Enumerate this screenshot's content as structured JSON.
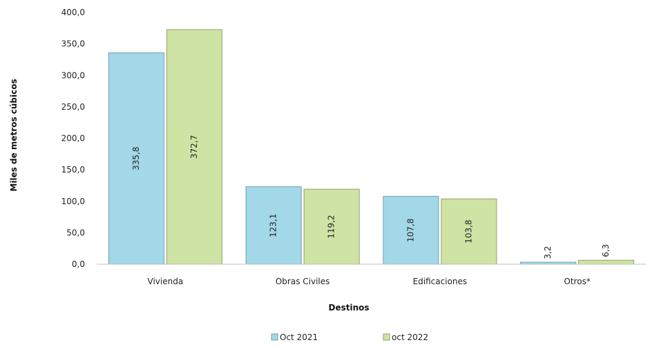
{
  "chart_data": {
    "type": "bar",
    "categories": [
      "Vivienda",
      "Obras Civiles",
      "Edificaciones",
      "Otros*"
    ],
    "series": [
      {
        "name": "Oct 2021",
        "values": [
          335.8,
          123.1,
          107.8,
          3.2
        ],
        "labels": [
          "335,8",
          "123,1",
          "107,8",
          "3,2"
        ],
        "color": "#a3d8e8",
        "stroke": "#6a9fb2"
      },
      {
        "name": "oct 2022",
        "values": [
          372.7,
          119.2,
          103.8,
          6.3
        ],
        "labels": [
          "372,7",
          "119,2",
          "103,8",
          "6,3"
        ],
        "color": "#cfe3a5",
        "stroke": "#8ea566"
      }
    ],
    "xlabel": "Destinos",
    "ylabel": "Miles de metros cúbicos",
    "ylim": [
      0,
      400
    ],
    "yticks": [
      0,
      50,
      100,
      150,
      200,
      250,
      300,
      350,
      400
    ],
    "ytick_labels": [
      "0,0",
      "50,0",
      "100,0",
      "150,0",
      "200,0",
      "250,0",
      "300,0",
      "350,0",
      "400,0"
    ],
    "grid": false,
    "legend_position": "bottom"
  }
}
